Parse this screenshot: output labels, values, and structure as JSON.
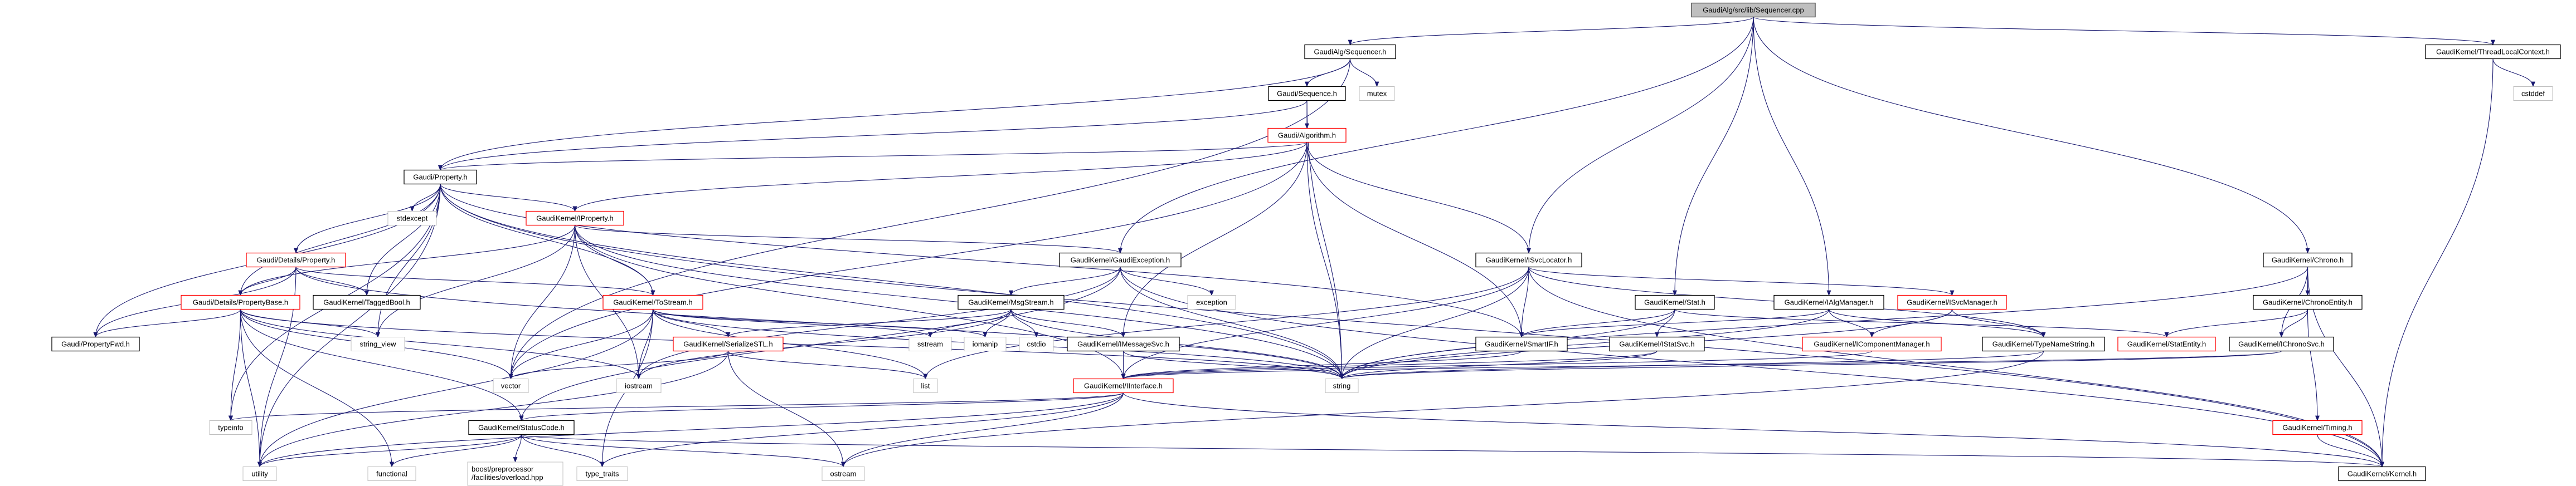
{
  "graph": {
    "edge_color": "#191970",
    "style_colors": {
      "root": "#bfbfbf",
      "documented": "#000000",
      "truncated": "#ff0000",
      "external": "#bfbfbf"
    },
    "nodes": [
      {
        "id": "cpp",
        "label": "GaudiAlg/src/lib/Sequencer.cpp",
        "style": "root"
      },
      {
        "id": "seqh",
        "label": "GaudiAlg/Sequencer.h",
        "style": "documented"
      },
      {
        "id": "sequence",
        "label": "Gaudi/Sequence.h",
        "style": "documented"
      },
      {
        "id": "mutex",
        "label": "mutex",
        "style": "external"
      },
      {
        "id": "algorithm",
        "label": "Gaudi/Algorithm.h",
        "style": "truncated"
      },
      {
        "id": "property",
        "label": "Gaudi/Property.h",
        "style": "documented"
      },
      {
        "id": "stdexcept",
        "label": "stdexcept",
        "style": "external"
      },
      {
        "id": "iproperty",
        "label": "GaudiKernel/IProperty.h",
        "style": "truncated"
      },
      {
        "id": "detprop",
        "label": "Gaudi/Details/Property.h",
        "style": "truncated"
      },
      {
        "id": "propbase",
        "label": "Gaudi/Details/PropertyBase.h",
        "style": "truncated"
      },
      {
        "id": "taggedbool",
        "label": "GaudiKernel/TaggedBool.h",
        "style": "documented"
      },
      {
        "id": "tostream",
        "label": "GaudiKernel/ToStream.h",
        "style": "truncated"
      },
      {
        "id": "propfwd",
        "label": "Gaudi/PropertyFwd.h",
        "style": "documented"
      },
      {
        "id": "string_view",
        "label": "string_view",
        "style": "external"
      },
      {
        "id": "vector",
        "label": "vector",
        "style": "external"
      },
      {
        "id": "iostream",
        "label": "iostream",
        "style": "external"
      },
      {
        "id": "typeinfo",
        "label": "typeinfo",
        "style": "external"
      },
      {
        "id": "statuscode",
        "label": "GaudiKernel/StatusCode.h",
        "style": "documented"
      },
      {
        "id": "utility",
        "label": "utility",
        "style": "external"
      },
      {
        "id": "functional",
        "label": "functional",
        "style": "external"
      },
      {
        "id": "boost",
        "label": "boost/preprocessor\n/facilities/overload.hpp",
        "style": "external"
      },
      {
        "id": "type_traits",
        "label": "type_traits",
        "style": "external"
      },
      {
        "id": "gaudiexc",
        "label": "GaudiKernel/GaudiException.h",
        "style": "documented"
      },
      {
        "id": "exception",
        "label": "exception",
        "style": "external"
      },
      {
        "id": "msgstream",
        "label": "GaudiKernel/MsgStream.h",
        "style": "documented"
      },
      {
        "id": "serializestl",
        "label": "GaudiKernel/SerializeSTL.h",
        "style": "truncated"
      },
      {
        "id": "sstream",
        "label": "sstream",
        "style": "external"
      },
      {
        "id": "iomanip",
        "label": "iomanip",
        "style": "external"
      },
      {
        "id": "cstdio",
        "label": "cstdio",
        "style": "external"
      },
      {
        "id": "imessagesvc",
        "label": "GaudiKernel/IMessageSvc.h",
        "style": "documented"
      },
      {
        "id": "list",
        "label": "list",
        "style": "external"
      },
      {
        "id": "iinterface",
        "label": "GaudiKernel/IInterface.h",
        "style": "truncated"
      },
      {
        "id": "ostream",
        "label": "ostream",
        "style": "external"
      },
      {
        "id": "isvclocator",
        "label": "GaudiKernel/ISvcLocator.h",
        "style": "documented"
      },
      {
        "id": "stat",
        "label": "GaudiKernel/Stat.h",
        "style": "documented"
      },
      {
        "id": "ialgmanager",
        "label": "GaudiKernel/IAlgManager.h",
        "style": "documented"
      },
      {
        "id": "smartif",
        "label": "GaudiKernel/SmartIF.h",
        "style": "documented"
      },
      {
        "id": "istatsvc",
        "label": "GaudiKernel/IStatSvc.h",
        "style": "documented"
      },
      {
        "id": "icompmanager",
        "label": "GaudiKernel/IComponentManager.h",
        "style": "truncated"
      },
      {
        "id": "string",
        "label": "string",
        "style": "external"
      },
      {
        "id": "threadlocal",
        "label": "GaudiKernel/ThreadLocalContext.h",
        "style": "documented"
      },
      {
        "id": "cstddef",
        "label": "cstddef",
        "style": "external"
      },
      {
        "id": "chrono",
        "label": "GaudiKernel/Chrono.h",
        "style": "documented"
      },
      {
        "id": "isvcmanager",
        "label": "GaudiKernel/ISvcManager.h",
        "style": "truncated"
      },
      {
        "id": "chronoentity",
        "label": "GaudiKernel/ChronoEntity.h",
        "style": "documented"
      },
      {
        "id": "typenamestring",
        "label": "GaudiKernel/TypeNameString.h",
        "style": "documented"
      },
      {
        "id": "statentity",
        "label": "GaudiKernel/StatEntity.h",
        "style": "truncated"
      },
      {
        "id": "ichronosvc",
        "label": "GaudiKernel/IChronoSvc.h",
        "style": "documented"
      },
      {
        "id": "timing",
        "label": "GaudiKernel/Timing.h",
        "style": "truncated"
      },
      {
        "id": "kernel",
        "label": "GaudiKernel/Kernel.h",
        "style": "documented"
      }
    ],
    "edges": [
      [
        "cpp",
        "seqh"
      ],
      [
        "cpp",
        "gaudiexc"
      ],
      [
        "cpp",
        "isvclocator"
      ],
      [
        "cpp",
        "stat"
      ],
      [
        "cpp",
        "ialgmanager"
      ],
      [
        "cpp",
        "chrono"
      ],
      [
        "cpp",
        "threadlocal"
      ],
      [
        "seqh",
        "sequence"
      ],
      [
        "seqh",
        "mutex"
      ],
      [
        "seqh",
        "property"
      ],
      [
        "seqh",
        "vector"
      ],
      [
        "sequence",
        "algorithm"
      ],
      [
        "sequence",
        "property"
      ],
      [
        "sequence",
        "string"
      ],
      [
        "algorithm",
        "property"
      ],
      [
        "algorithm",
        "iproperty"
      ],
      [
        "algorithm",
        "isvclocator"
      ],
      [
        "algorithm",
        "string"
      ],
      [
        "algorithm",
        "vector"
      ],
      [
        "algorithm",
        "smartif"
      ],
      [
        "algorithm",
        "imessagesvc"
      ],
      [
        "property",
        "stdexcept"
      ],
      [
        "property",
        "iproperty"
      ],
      [
        "property",
        "detprop"
      ],
      [
        "property",
        "propbase"
      ],
      [
        "property",
        "taggedbool"
      ],
      [
        "property",
        "propfwd"
      ],
      [
        "property",
        "string_view"
      ],
      [
        "property",
        "string"
      ],
      [
        "property",
        "utility"
      ],
      [
        "property",
        "typeinfo"
      ],
      [
        "property",
        "tostream"
      ],
      [
        "property",
        "smartif"
      ],
      [
        "property",
        "kernel"
      ],
      [
        "iproperty",
        "propbase"
      ],
      [
        "iproperty",
        "string_view"
      ],
      [
        "iproperty",
        "vector"
      ],
      [
        "iproperty",
        "iostream"
      ],
      [
        "iproperty",
        "tostream"
      ],
      [
        "iproperty",
        "gaudiexc"
      ],
      [
        "iproperty",
        "iinterface"
      ],
      [
        "iproperty",
        "string"
      ],
      [
        "detprop",
        "propbase"
      ],
      [
        "detprop",
        "taggedbool"
      ],
      [
        "detprop",
        "propfwd"
      ],
      [
        "detprop",
        "utility"
      ],
      [
        "detprop",
        "tostream"
      ],
      [
        "detprop",
        "string"
      ],
      [
        "propbase",
        "propfwd"
      ],
      [
        "propbase",
        "string_view"
      ],
      [
        "propbase",
        "typeinfo"
      ],
      [
        "propbase",
        "utility"
      ],
      [
        "propbase",
        "functional"
      ],
      [
        "propbase",
        "statuscode"
      ],
      [
        "propbase",
        "iostream"
      ],
      [
        "propbase",
        "vector"
      ],
      [
        "propbase",
        "string"
      ],
      [
        "tostream",
        "vector"
      ],
      [
        "tostream",
        "iostream"
      ],
      [
        "tostream",
        "type_traits"
      ],
      [
        "tostream",
        "serializestl"
      ],
      [
        "tostream",
        "sstream"
      ],
      [
        "tostream",
        "iomanip"
      ],
      [
        "tostream",
        "list"
      ],
      [
        "tostream",
        "string"
      ],
      [
        "tostream",
        "utility"
      ],
      [
        "serializestl",
        "vector"
      ],
      [
        "serializestl",
        "list"
      ],
      [
        "serializestl",
        "ostream"
      ],
      [
        "serializestl",
        "utility"
      ],
      [
        "gaudiexc",
        "msgstream"
      ],
      [
        "gaudiexc",
        "exception"
      ],
      [
        "gaudiexc",
        "statuscode"
      ],
      [
        "gaudiexc",
        "string"
      ],
      [
        "gaudiexc",
        "iostream"
      ],
      [
        "gaudiexc",
        "kernel"
      ],
      [
        "msgstream",
        "sstream"
      ],
      [
        "msgstream",
        "iomanip"
      ],
      [
        "msgstream",
        "cstdio"
      ],
      [
        "msgstream",
        "imessagesvc"
      ],
      [
        "msgstream",
        "serializestl"
      ],
      [
        "msgstream",
        "iostream"
      ],
      [
        "msgstream",
        "string"
      ],
      [
        "imessagesvc",
        "iinterface"
      ],
      [
        "imessagesvc",
        "string"
      ],
      [
        "iinterface",
        "statuscode"
      ],
      [
        "iinterface",
        "typeinfo"
      ],
      [
        "iinterface",
        "ostream"
      ],
      [
        "iinterface",
        "type_traits"
      ],
      [
        "iinterface",
        "kernel"
      ],
      [
        "iinterface",
        "utility"
      ],
      [
        "statuscode",
        "utility"
      ],
      [
        "statuscode",
        "functional"
      ],
      [
        "statuscode",
        "boost"
      ],
      [
        "statuscode",
        "type_traits"
      ],
      [
        "statuscode",
        "ostream"
      ],
      [
        "statuscode",
        "kernel"
      ],
      [
        "isvclocator",
        "smartif"
      ],
      [
        "isvclocator",
        "iinterface"
      ],
      [
        "isvclocator",
        "string"
      ],
      [
        "isvclocator",
        "list"
      ],
      [
        "isvclocator",
        "isvcmanager"
      ],
      [
        "isvclocator",
        "typenamestring"
      ],
      [
        "isvclocator",
        "kernel"
      ],
      [
        "stat",
        "smartif"
      ],
      [
        "stat",
        "istatsvc"
      ],
      [
        "stat",
        "string"
      ],
      [
        "stat",
        "statentity"
      ],
      [
        "istatsvc",
        "iinterface"
      ],
      [
        "istatsvc",
        "string"
      ],
      [
        "ialgmanager",
        "smartif"
      ],
      [
        "ialgmanager",
        "icompmanager"
      ],
      [
        "ialgmanager",
        "typenamestring"
      ],
      [
        "ialgmanager",
        "string"
      ],
      [
        "isvcmanager",
        "icompmanager"
      ],
      [
        "isvcmanager",
        "typenamestring"
      ],
      [
        "isvcmanager",
        "string"
      ],
      [
        "icompmanager",
        "iinterface"
      ],
      [
        "typenamestring",
        "string"
      ],
      [
        "typenamestring",
        "ostream"
      ],
      [
        "smartif",
        "iinterface"
      ],
      [
        "chrono",
        "chronoentity"
      ],
      [
        "chrono",
        "ichronosvc"
      ],
      [
        "chrono",
        "kernel"
      ],
      [
        "chrono",
        "string"
      ],
      [
        "chronoentity",
        "statentity"
      ],
      [
        "chronoentity",
        "ichronosvc"
      ],
      [
        "chronoentity",
        "timing"
      ],
      [
        "ichronosvc",
        "iinterface"
      ],
      [
        "ichronosvc",
        "string"
      ],
      [
        "timing",
        "kernel"
      ],
      [
        "threadlocal",
        "cstddef"
      ],
      [
        "threadlocal",
        "kernel"
      ]
    ]
  }
}
